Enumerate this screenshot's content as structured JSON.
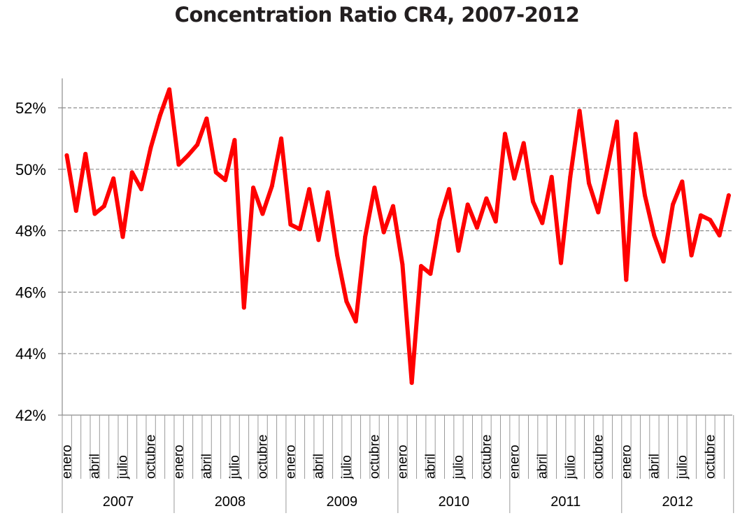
{
  "chart_data": {
    "type": "line",
    "title": "Concentration Ratio CR4, 2007-2012",
    "xlabel": "",
    "ylabel": "",
    "ylim": [
      42,
      52.5
    ],
    "yticks": [
      "42%",
      "44%",
      "46%",
      "48%",
      "50%",
      "52%"
    ],
    "ytick_values": [
      42,
      44,
      46,
      48,
      50,
      52
    ],
    "grid": "horizontal dashed",
    "legend": "none",
    "line_color": "#ff0000",
    "month_labels": [
      "enero",
      "",
      "",
      "abril",
      "",
      "",
      "julio",
      "",
      "",
      "octubre",
      "",
      ""
    ],
    "years": [
      "2007",
      "2008",
      "2009",
      "2010",
      "2011",
      "2012"
    ],
    "series": [
      {
        "values": [
          50.45,
          48.65,
          50.5,
          48.55,
          48.8,
          49.7,
          47.8,
          49.9,
          49.35,
          50.7,
          51.75,
          52.6,
          50.15,
          50.45,
          50.8,
          51.65,
          49.9,
          49.65,
          50.95,
          45.5,
          49.4,
          48.55,
          49.45,
          51.0,
          48.2,
          48.05,
          49.35,
          47.7,
          49.25,
          47.2,
          45.7,
          45.05,
          47.8,
          49.4,
          47.95,
          48.8,
          46.9,
          43.05,
          46.85,
          46.6,
          48.35,
          49.35,
          47.35,
          48.85,
          48.1,
          49.05,
          48.3,
          51.15,
          49.7,
          50.85,
          48.95,
          48.25,
          49.75,
          46.95,
          49.75,
          51.9,
          49.55,
          48.6,
          50.05,
          51.55,
          46.4,
          51.15,
          49.15,
          47.85,
          47.0,
          48.85,
          49.6,
          47.2,
          48.5,
          48.35,
          47.85,
          49.15
        ]
      }
    ]
  }
}
